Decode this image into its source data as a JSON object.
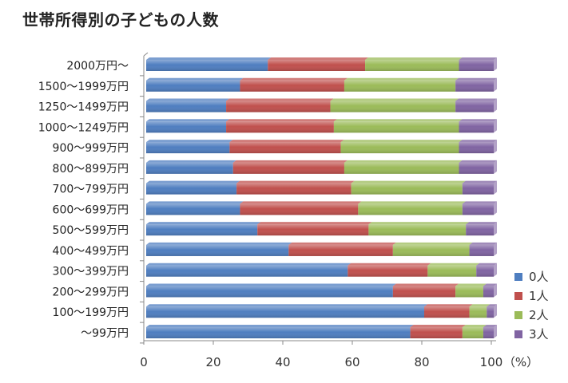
{
  "chart_data": {
    "type": "bar",
    "orientation": "horizontal",
    "stacked": true,
    "title": "世帯所得別の子どもの人数",
    "xlabel": "",
    "ylabel": "",
    "x_unit": "（%）",
    "xlim": [
      0,
      100
    ],
    "xticks": [
      "0",
      "20",
      "40",
      "60",
      "80",
      "100"
    ],
    "grid": false,
    "legend_position": "right",
    "categories": [
      "2000万円〜",
      "1500〜1999万円",
      "1250〜1499万円",
      "1000〜1249万円",
      "900〜999万円",
      "800〜899万円",
      "700〜799万円",
      "600〜699万円",
      "500〜599万円",
      "400〜499万円",
      "300〜399万円",
      "200〜299万円",
      "100〜199万円",
      "〜99万円"
    ],
    "series": [
      {
        "name": "0人",
        "color": "#4f7ec0",
        "values": [
          35,
          27,
          23,
          23,
          24,
          25,
          26,
          27,
          32,
          41,
          58,
          71,
          80,
          76
        ]
      },
      {
        "name": "1人",
        "color": "#c0504d",
        "values": [
          28,
          30,
          30,
          31,
          32,
          32,
          33,
          34,
          32,
          30,
          23,
          18,
          13,
          15
        ]
      },
      {
        "name": "2人",
        "color": "#9bbb59",
        "values": [
          27,
          32,
          36,
          36,
          34,
          33,
          32,
          30,
          28,
          22,
          14,
          8,
          5,
          6
        ]
      },
      {
        "name": "3人",
        "color": "#8064a2",
        "values": [
          10,
          11,
          11,
          10,
          10,
          10,
          9,
          9,
          8,
          7,
          5,
          3,
          2,
          3
        ]
      }
    ]
  }
}
